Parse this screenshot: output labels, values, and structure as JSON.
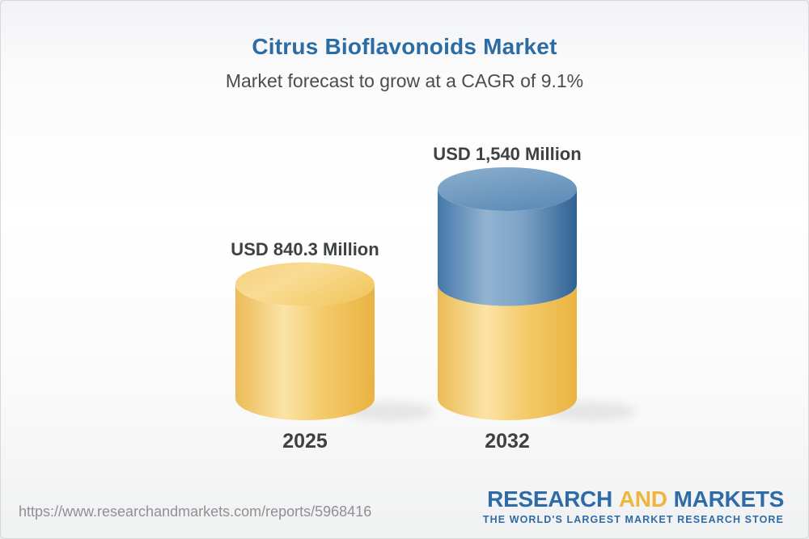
{
  "header": {
    "title": "Citrus Bioflavonoids Market",
    "subtitle": "Market forecast to grow at a CAGR of 9.1%"
  },
  "chart_data": {
    "type": "bar",
    "subtype": "3d-cylinder",
    "title": "Citrus Bioflavonoids Market",
    "subtitle": "Market forecast to grow at a CAGR of 9.1%",
    "categories": [
      "2025",
      "2032"
    ],
    "values": [
      840.3,
      1540
    ],
    "value_labels": [
      "USD 840.3 Million",
      "USD 1,540 Million"
    ],
    "unit": "USD Million",
    "cagr_percent": 9.1,
    "ylim": [
      0,
      1600
    ],
    "grid": false,
    "legend": "none",
    "series_colors": {
      "base_segment": "#f3c75f",
      "growth_segment": "#5c8ab5"
    }
  },
  "footer": {
    "url": "https://www.researchandmarkets.com/reports/5968416",
    "logo": {
      "word1": "RESEARCH",
      "word2": "AND",
      "word3": "MARKETS",
      "tagline": "THE WORLD'S LARGEST MARKET RESEARCH STORE",
      "blue": "#2f6ba7",
      "gold": "#efb53c"
    }
  }
}
